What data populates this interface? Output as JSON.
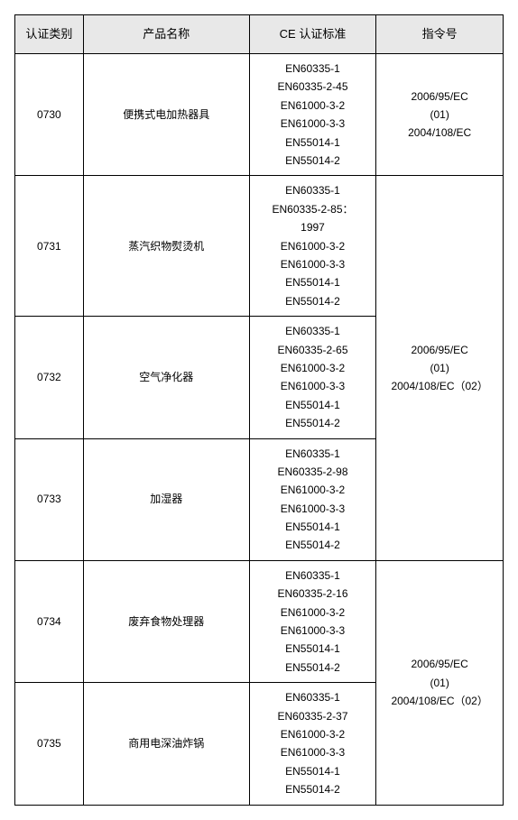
{
  "table": {
    "headers": {
      "category": "认证类别",
      "product": "产品名称",
      "standard": "CE 认证标准",
      "directive": "指令号"
    },
    "rows": [
      {
        "category": "0730",
        "product": "便携式电加热器具",
        "standards": [
          "EN60335-1",
          "EN60335-2-45",
          "EN61000-3-2",
          "EN61000-3-3",
          "EN55014-1",
          "EN55014-2"
        ],
        "directive": [
          "2006/95/EC",
          "(01)",
          "2004/108/EC"
        ]
      },
      {
        "category": "0731",
        "product": "蒸汽织物熨烫机",
        "standards": [
          "EN60335-1",
          "EN60335-2-85：",
          "1997",
          "EN61000-3-2",
          "EN61000-3-3",
          "EN55014-1",
          "EN55014-2"
        ]
      },
      {
        "category": "0732",
        "product": "空气净化器",
        "standards": [
          "EN60335-1",
          "EN60335-2-65",
          "EN61000-3-2",
          "EN61000-3-3",
          "EN55014-1",
          "EN55014-2"
        ]
      },
      {
        "category": "0733",
        "product": "加湿器",
        "standards": [
          "EN60335-1",
          "EN60335-2-98",
          "EN61000-3-2",
          "EN61000-3-3",
          "EN55014-1",
          "EN55014-2"
        ],
        "directive_merged": [
          "2006/95/EC",
          "(01)",
          "2004/108/EC（02）"
        ]
      },
      {
        "category": "0734",
        "product": "废弃食物处理器",
        "standards": [
          "EN60335-1",
          "EN60335-2-16",
          "EN61000-3-2",
          "EN61000-3-3",
          "EN55014-1",
          "EN55014-2"
        ]
      },
      {
        "category": "0735",
        "product": "商用电深油炸锅",
        "standards": [
          "EN60335-1",
          "EN60335-2-37",
          "EN61000-3-2",
          "EN61000-3-3",
          "EN55014-1",
          "EN55014-2"
        ],
        "directive_merged2": [
          "2006/95/EC",
          "(01)",
          "2004/108/EC（02）"
        ]
      }
    ],
    "styling": {
      "header_bg": "#e8e8e8",
      "border_color": "#000000",
      "font_size": 12,
      "header_font_size": 13,
      "text_color": "#000000",
      "background": "#ffffff",
      "line_height": 1.7
    }
  }
}
